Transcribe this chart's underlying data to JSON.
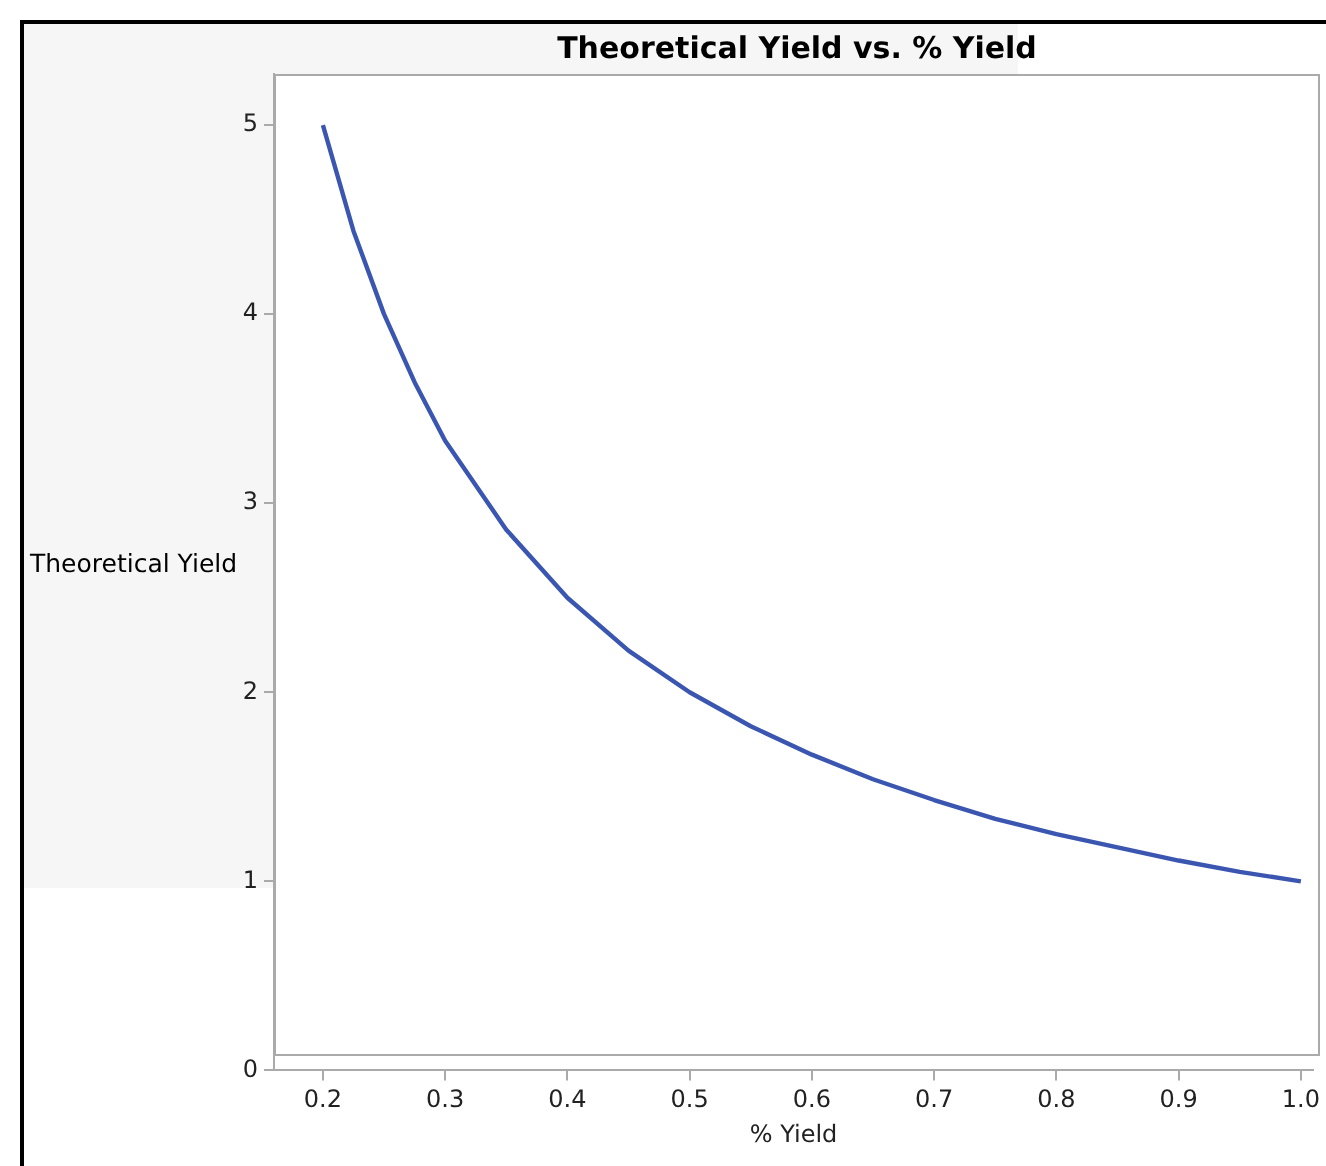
{
  "chart_data": {
    "type": "line",
    "title": "Theoretical Yield vs. % Yield",
    "xlabel": "% Yield",
    "ylabel": "Theoretical Yield",
    "x": [
      0.2,
      0.225,
      0.25,
      0.275,
      0.3,
      0.35,
      0.4,
      0.45,
      0.5,
      0.55,
      0.6,
      0.65,
      0.7,
      0.75,
      0.8,
      0.85,
      0.9,
      0.95,
      1.0
    ],
    "series": [
      {
        "color": "#3a56b0",
        "values": [
          5,
          4.44,
          4,
          3.64,
          3.33,
          2.86,
          2.5,
          2.22,
          2,
          1.82,
          1.67,
          1.54,
          1.43,
          1.33,
          1.25,
          1.18,
          1.11,
          1.05,
          1
        ]
      }
    ],
    "xlim": [
      0.16,
      1.01
    ],
    "xticks": [
      {
        "value": 0.2,
        "label": "0.2"
      },
      {
        "value": 0.3,
        "label": "0.3"
      },
      {
        "value": 0.4,
        "label": "0.4"
      },
      {
        "value": 0.5,
        "label": "0.5"
      },
      {
        "value": 0.6,
        "label": "0.6"
      },
      {
        "value": 0.7,
        "label": "0.7"
      },
      {
        "value": 0.8,
        "label": "0.8"
      },
      {
        "value": 0.9,
        "label": "0.9"
      },
      {
        "value": 1.0,
        "label": "1.0"
      }
    ],
    "ylim": [
      0,
      5.27
    ],
    "yticks": [
      0,
      1,
      2,
      3,
      4,
      5
    ],
    "grid": false,
    "legend": false,
    "marker": "none",
    "line_style": "solid"
  }
}
